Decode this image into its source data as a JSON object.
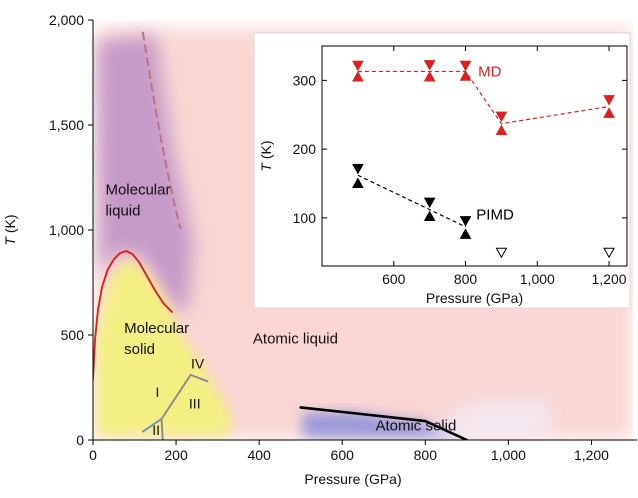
{
  "chart_data": [
    {
      "type": "line",
      "role": "main",
      "xlabel": "Pressure (GPa)",
      "ylabel_italic": "T",
      "ylabel_unit": " (K)",
      "xlim": [
        0,
        1300
      ],
      "ylim": [
        0,
        2000
      ],
      "xticks": [
        0,
        200,
        400,
        600,
        800,
        1000,
        1200
      ],
      "xtick_labels": [
        "0",
        "200",
        "400",
        "600",
        "800",
        "1,000",
        "1,200"
      ],
      "yticks": [
        0,
        500,
        1000,
        1500,
        2000
      ],
      "ytick_labels": [
        "0",
        "500",
        "1,000",
        "1,500",
        "2,000"
      ],
      "colors": {
        "atomic_liquid": "#f9d0cc",
        "molecular_liquid": "#b98bc6",
        "molecular_solid": "#f4f27a",
        "atomic_solid": "#7f86dc",
        "melting_curve": "#e02020",
        "dashed_curve": "#c0707c",
        "phase_lines": "#8a8a8a",
        "atomic_solid_boundary": "#000000"
      },
      "regions": [
        {
          "name": "Atomic liquid",
          "label": "Atomic liquid",
          "label_at": [
            385,
            460
          ]
        },
        {
          "name": "Molecular liquid",
          "label": "Molecular\nliquid",
          "label_at": [
            30,
            1170
          ]
        },
        {
          "name": "Molecular solid",
          "label": "Molecular\nsolid",
          "label_at": [
            75,
            510
          ]
        },
        {
          "name": "Atomic solid",
          "label": "Atomic solid",
          "label_at": [
            680,
            45
          ]
        }
      ],
      "curves": [
        {
          "name": "molecular melting curve",
          "style": "solid",
          "color": "#e02020",
          "x": [
            0,
            5,
            12,
            22,
            35,
            50,
            65,
            80,
            95,
            110,
            130,
            150,
            170,
            190
          ],
          "y": [
            290,
            480,
            620,
            730,
            810,
            860,
            890,
            900,
            885,
            850,
            780,
            710,
            650,
            610
          ]
        },
        {
          "name": "dashed boundary",
          "style": "dashed",
          "color": "#c0707c",
          "x": [
            120,
            135,
            150,
            165,
            180,
            195,
            210
          ],
          "y": [
            1940,
            1760,
            1580,
            1420,
            1270,
            1130,
            1010
          ]
        },
        {
          "name": "atomic solid boundary",
          "style": "solid",
          "color": "#000000",
          "x": [
            500,
            640,
            800,
            900
          ],
          "y": [
            155,
            125,
            90,
            0
          ]
        },
        {
          "name": "phase line I-III",
          "style": "solid",
          "color": "#8a8a8a",
          "x": [
            165,
            235
          ],
          "y": [
            100,
            310
          ]
        },
        {
          "name": "phase line III-IV",
          "style": "solid",
          "color": "#8a8a8a",
          "x": [
            235,
            275
          ],
          "y": [
            310,
            280
          ]
        },
        {
          "name": "phase line I-II",
          "style": "solid",
          "color": "#6f8fbf",
          "x": [
            120,
            165
          ],
          "y": [
            40,
            100
          ]
        },
        {
          "name": "phase line II-III",
          "style": "solid",
          "color": "#8a8a8a",
          "x": [
            165,
            168
          ],
          "y": [
            100,
            0
          ]
        }
      ],
      "phase_labels": [
        {
          "text": "I",
          "at": [
            155,
            205
          ]
        },
        {
          "text": "II",
          "at": [
            152,
            25
          ]
        },
        {
          "text": "III",
          "at": [
            245,
            150
          ]
        },
        {
          "text": "IV",
          "at": [
            252,
            340
          ]
        }
      ]
    },
    {
      "type": "scatter",
      "role": "inset",
      "xlabel": "Pressure (GPa)",
      "ylabel_italic": "T",
      "ylabel_unit": " (K)",
      "xlim": [
        400,
        1250
      ],
      "ylim": [
        30,
        350
      ],
      "xticks": [
        600,
        800,
        1000,
        1200
      ],
      "xtick_labels": [
        "600",
        "800",
        "1,000",
        "1,200"
      ],
      "yticks": [
        100,
        200,
        300
      ],
      "ytick_labels": [
        "100",
        "200",
        "300"
      ],
      "series": [
        {
          "name": "MD",
          "color": "#e02020",
          "marker": "down-triangle",
          "filled": true,
          "x": [
            500,
            700,
            800,
            900,
            1200
          ],
          "y": [
            322,
            323,
            322,
            248,
            272
          ]
        },
        {
          "name": "MD",
          "color": "#e02020",
          "marker": "up-triangle",
          "filled": true,
          "x": [
            500,
            700,
            800,
            900,
            1200
          ],
          "y": [
            305,
            305,
            306,
            227,
            252
          ]
        },
        {
          "name": "PIMD",
          "color": "#000000",
          "marker": "down-triangle",
          "filled": true,
          "x": [
            500,
            700,
            800
          ],
          "y": [
            172,
            123,
            96
          ]
        },
        {
          "name": "PIMD",
          "color": "#000000",
          "marker": "up-triangle",
          "filled": true,
          "x": [
            500,
            700,
            800
          ],
          "y": [
            150,
            102,
            76
          ]
        },
        {
          "name": "PIMD",
          "color": "#000000",
          "marker": "down-triangle",
          "filled": false,
          "x": [
            900,
            1200
          ],
          "y": [
            50,
            50
          ]
        }
      ],
      "fit_lines": [
        {
          "name": "MD",
          "color": "#e02020",
          "x": [
            500,
            800,
            900,
            1200
          ],
          "y": [
            313,
            313,
            237,
            262
          ]
        },
        {
          "name": "PIMD",
          "color": "#000000",
          "x": [
            500,
            800
          ],
          "y": [
            162,
            87
          ]
        }
      ],
      "labels": [
        {
          "text": "MD",
          "color": "#e02020",
          "at": [
            835,
            313
          ]
        },
        {
          "text": "PIMD",
          "color": "#000000",
          "at": [
            830,
            105
          ]
        }
      ]
    }
  ]
}
